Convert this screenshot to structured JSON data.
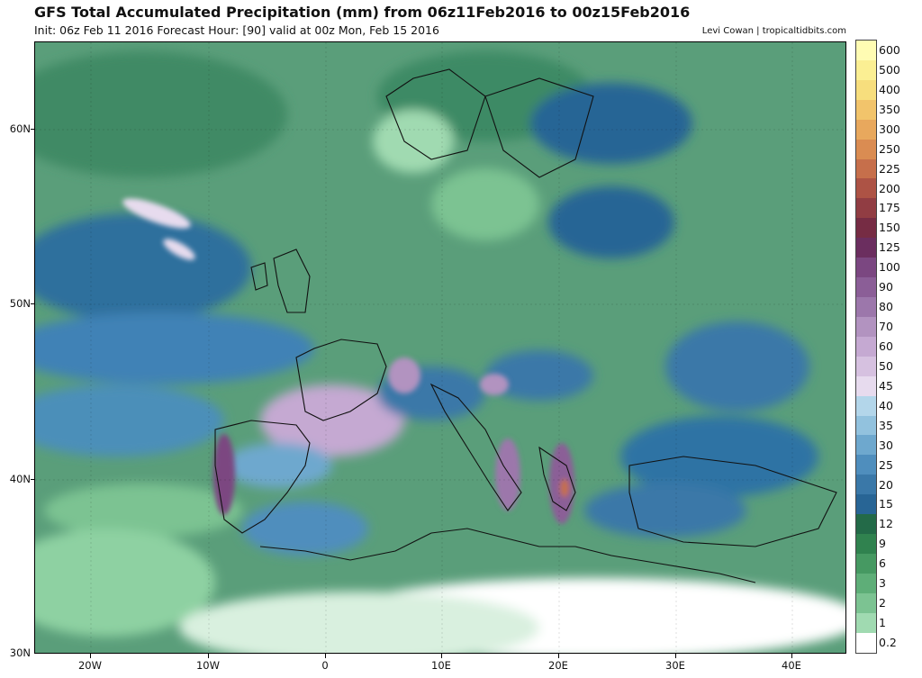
{
  "header": {
    "title": "GFS Total Accumulated Precipitation (mm) from 06z11Feb2016 to 00z15Feb2016",
    "subtitle": "Init: 06z Feb 11 2016   Forecast Hour: [90]   valid at 00z Mon, Feb 15 2016",
    "credit": "Levi Cowan | tropicaltidbits.com"
  },
  "map": {
    "lat_labels": [
      "60N",
      "50N",
      "40N",
      "30N"
    ],
    "lon_labels": [
      "20W",
      "10W",
      "0",
      "10E",
      "20E",
      "30E",
      "40E"
    ],
    "projection": "lat-lon",
    "lat_range": [
      30,
      65
    ],
    "lon_range": [
      -25,
      46
    ]
  },
  "colorbar": {
    "levels": [
      {
        "label": "600",
        "color": "#fffcb3"
      },
      {
        "label": "500",
        "color": "#fbef93"
      },
      {
        "label": "400",
        "color": "#f7de7d"
      },
      {
        "label": "350",
        "color": "#f2c46b"
      },
      {
        "label": "300",
        "color": "#e8a85d"
      },
      {
        "label": "250",
        "color": "#da8c52"
      },
      {
        "label": "225",
        "color": "#c66f4b"
      },
      {
        "label": "200",
        "color": "#ad5345"
      },
      {
        "label": "175",
        "color": "#913d43"
      },
      {
        "label": "150",
        "color": "#762c44"
      },
      {
        "label": "125",
        "color": "#6b2e5f"
      },
      {
        "label": "100",
        "color": "#7b4781"
      },
      {
        "label": "90",
        "color": "#8b5e97"
      },
      {
        "label": "80",
        "color": "#9c77ab"
      },
      {
        "label": "70",
        "color": "#b293c0"
      },
      {
        "label": "60",
        "color": "#c5a9d2"
      },
      {
        "label": "50",
        "color": "#d6c1e0"
      },
      {
        "label": "45",
        "color": "#e7dbee"
      },
      {
        "label": "40",
        "color": "#b3d6ea"
      },
      {
        "label": "35",
        "color": "#92c2de"
      },
      {
        "label": "30",
        "color": "#6ea8ce"
      },
      {
        "label": "25",
        "color": "#4f8ebd"
      },
      {
        "label": "20",
        "color": "#3a78a8"
      },
      {
        "label": "15",
        "color": "#286595"
      },
      {
        "label": "12",
        "color": "#236a48"
      },
      {
        "label": "9",
        "color": "#30824f"
      },
      {
        "label": "6",
        "color": "#469962"
      },
      {
        "label": "3",
        "color": "#5eae78"
      },
      {
        "label": "2",
        "color": "#7cc392"
      },
      {
        "label": "1",
        "color": "#a0dab1"
      },
      {
        "label": "0.2",
        "color": "#ffffff"
      }
    ]
  }
}
